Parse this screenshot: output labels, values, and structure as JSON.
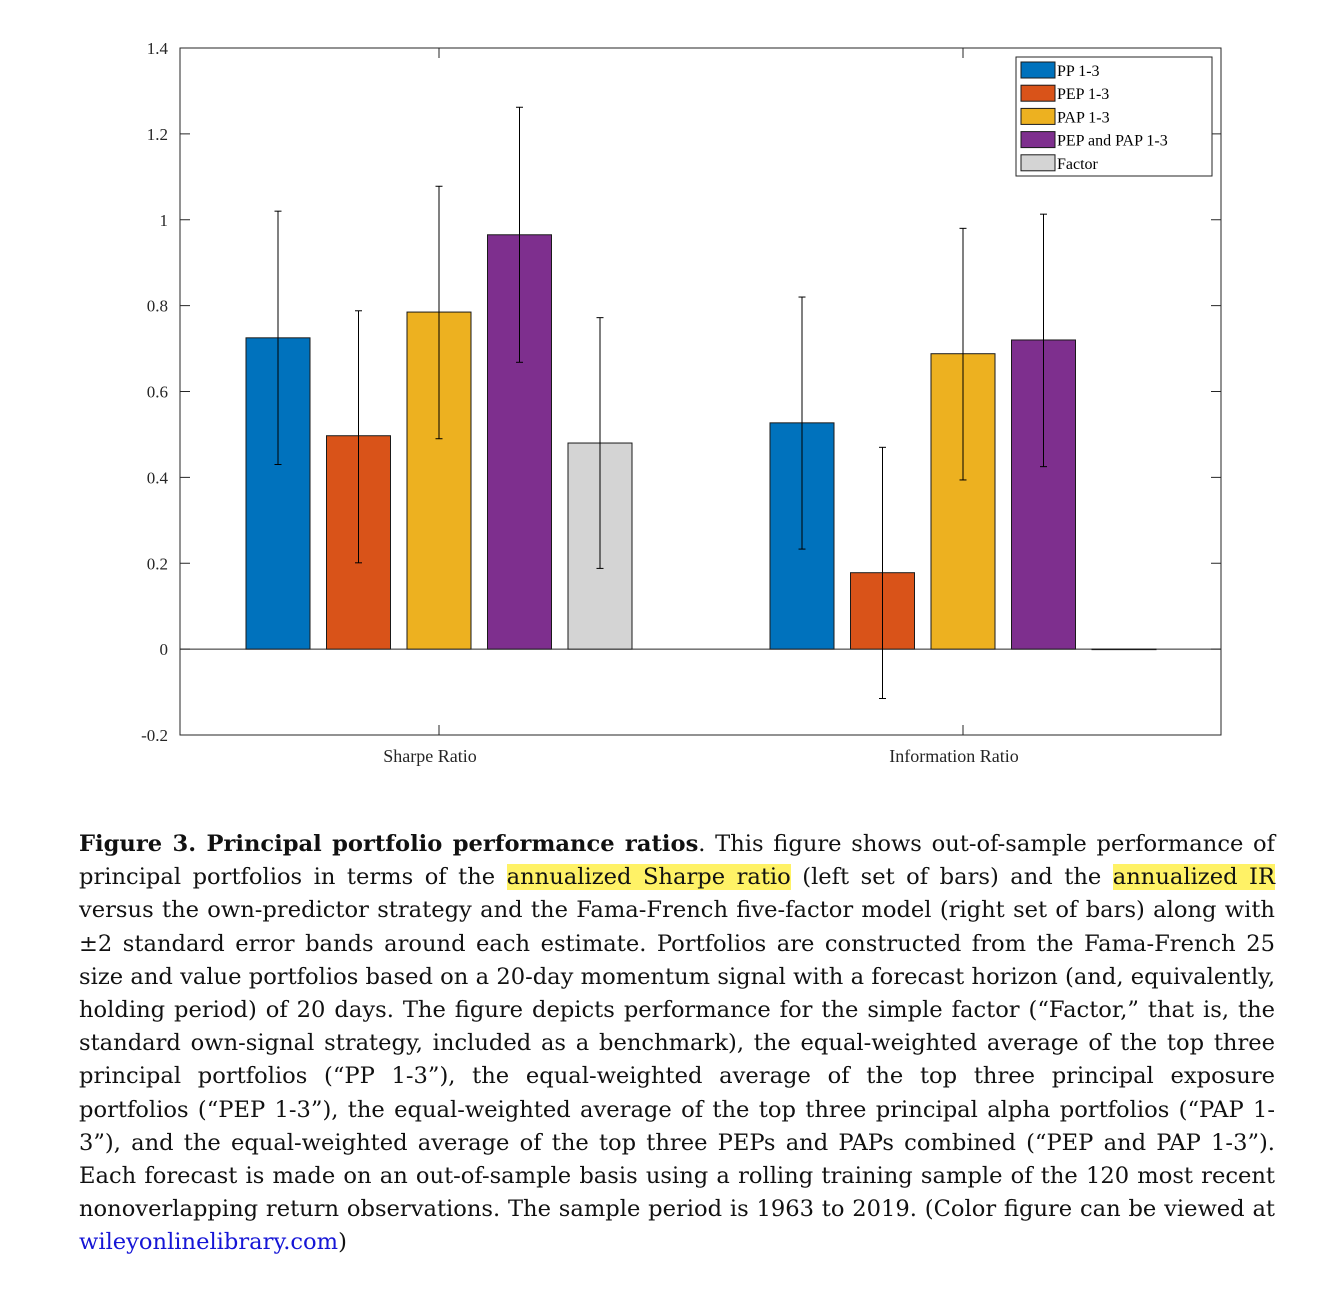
{
  "chart_data": {
    "type": "bar",
    "categories": [
      "Sharpe Ratio",
      "Information Ratio"
    ],
    "series": [
      {
        "name": "PP 1-3",
        "color": "#0072BD",
        "values": [
          0.725,
          0.527
        ],
        "err_low": [
          0.43,
          0.233
        ],
        "err_high": [
          1.02,
          0.82
        ]
      },
      {
        "name": "PEP 1-3",
        "color": "#D95319",
        "values": [
          0.497,
          0.178
        ],
        "err_low": [
          0.201,
          -0.115
        ],
        "err_high": [
          0.788,
          0.47
        ]
      },
      {
        "name": "PAP 1-3",
        "color": "#EDB120",
        "values": [
          0.785,
          0.688
        ],
        "err_low": [
          0.49,
          0.394
        ],
        "err_high": [
          1.078,
          0.98
        ]
      },
      {
        "name": "PEP and PAP 1-3",
        "color": "#7E2F8E",
        "values": [
          0.965,
          0.72
        ],
        "err_low": [
          0.668,
          0.425
        ],
        "err_high": [
          1.262,
          1.013
        ]
      },
      {
        "name": "Factor",
        "color": "#D4D4D4",
        "values": [
          0.48,
          0.0
        ],
        "err_low": [
          0.188,
          null
        ],
        "err_high": [
          0.772,
          null
        ]
      }
    ],
    "ylim": [
      -0.2,
      1.4
    ],
    "yticks": [
      "-0.2",
      "0",
      "0.2",
      "0.4",
      "0.6",
      "0.8",
      "1",
      "1.2",
      "1.4"
    ],
    "legend_position": "top-right",
    "grid": false
  },
  "caption": {
    "figure_label": "Figure 3.",
    "figure_title": "Principal portfolio performance ratios",
    "text_1": ". This figure shows out-of-sample performance of principal portfolios in terms of the ",
    "highlight_1": "annualized Sharpe ratio",
    "text_2": " (left set of bars) and the ",
    "highlight_2": "annualized IR",
    "text_3": " versus the own-predictor strategy and the Fama-French five-factor model (right set of bars) along with ±2 standard error bands around each estimate. Portfolios are constructed from the Fama-French 25 size and value portfolios based on a 20-day momentum signal with a forecast horizon (and, equivalently, holding period) of 20 days. The figure depicts performance for the simple factor (“Factor,” that is, the standard own-signal strategy, included as a benchmark), the equal-weighted average of the top three principal portfolios (“PP 1-3”), the equal-weighted average of the top three principal exposure portfolios (“PEP 1-3”), the equal-weighted average of the top three principal alpha portfolios (“PAP 1-3”), and the equal-weighted average of the top three PEPs and PAPs combined (“PEP and PAP 1-3”). Each forecast is made on an out-of-sample basis using a rolling training sample of the 120 most recent nonoverlapping return observations. The sample period is 1963 to 2019. (Color figure can be viewed at ",
    "link": "wileyonlinelibrary.com",
    "text_4": ")"
  }
}
